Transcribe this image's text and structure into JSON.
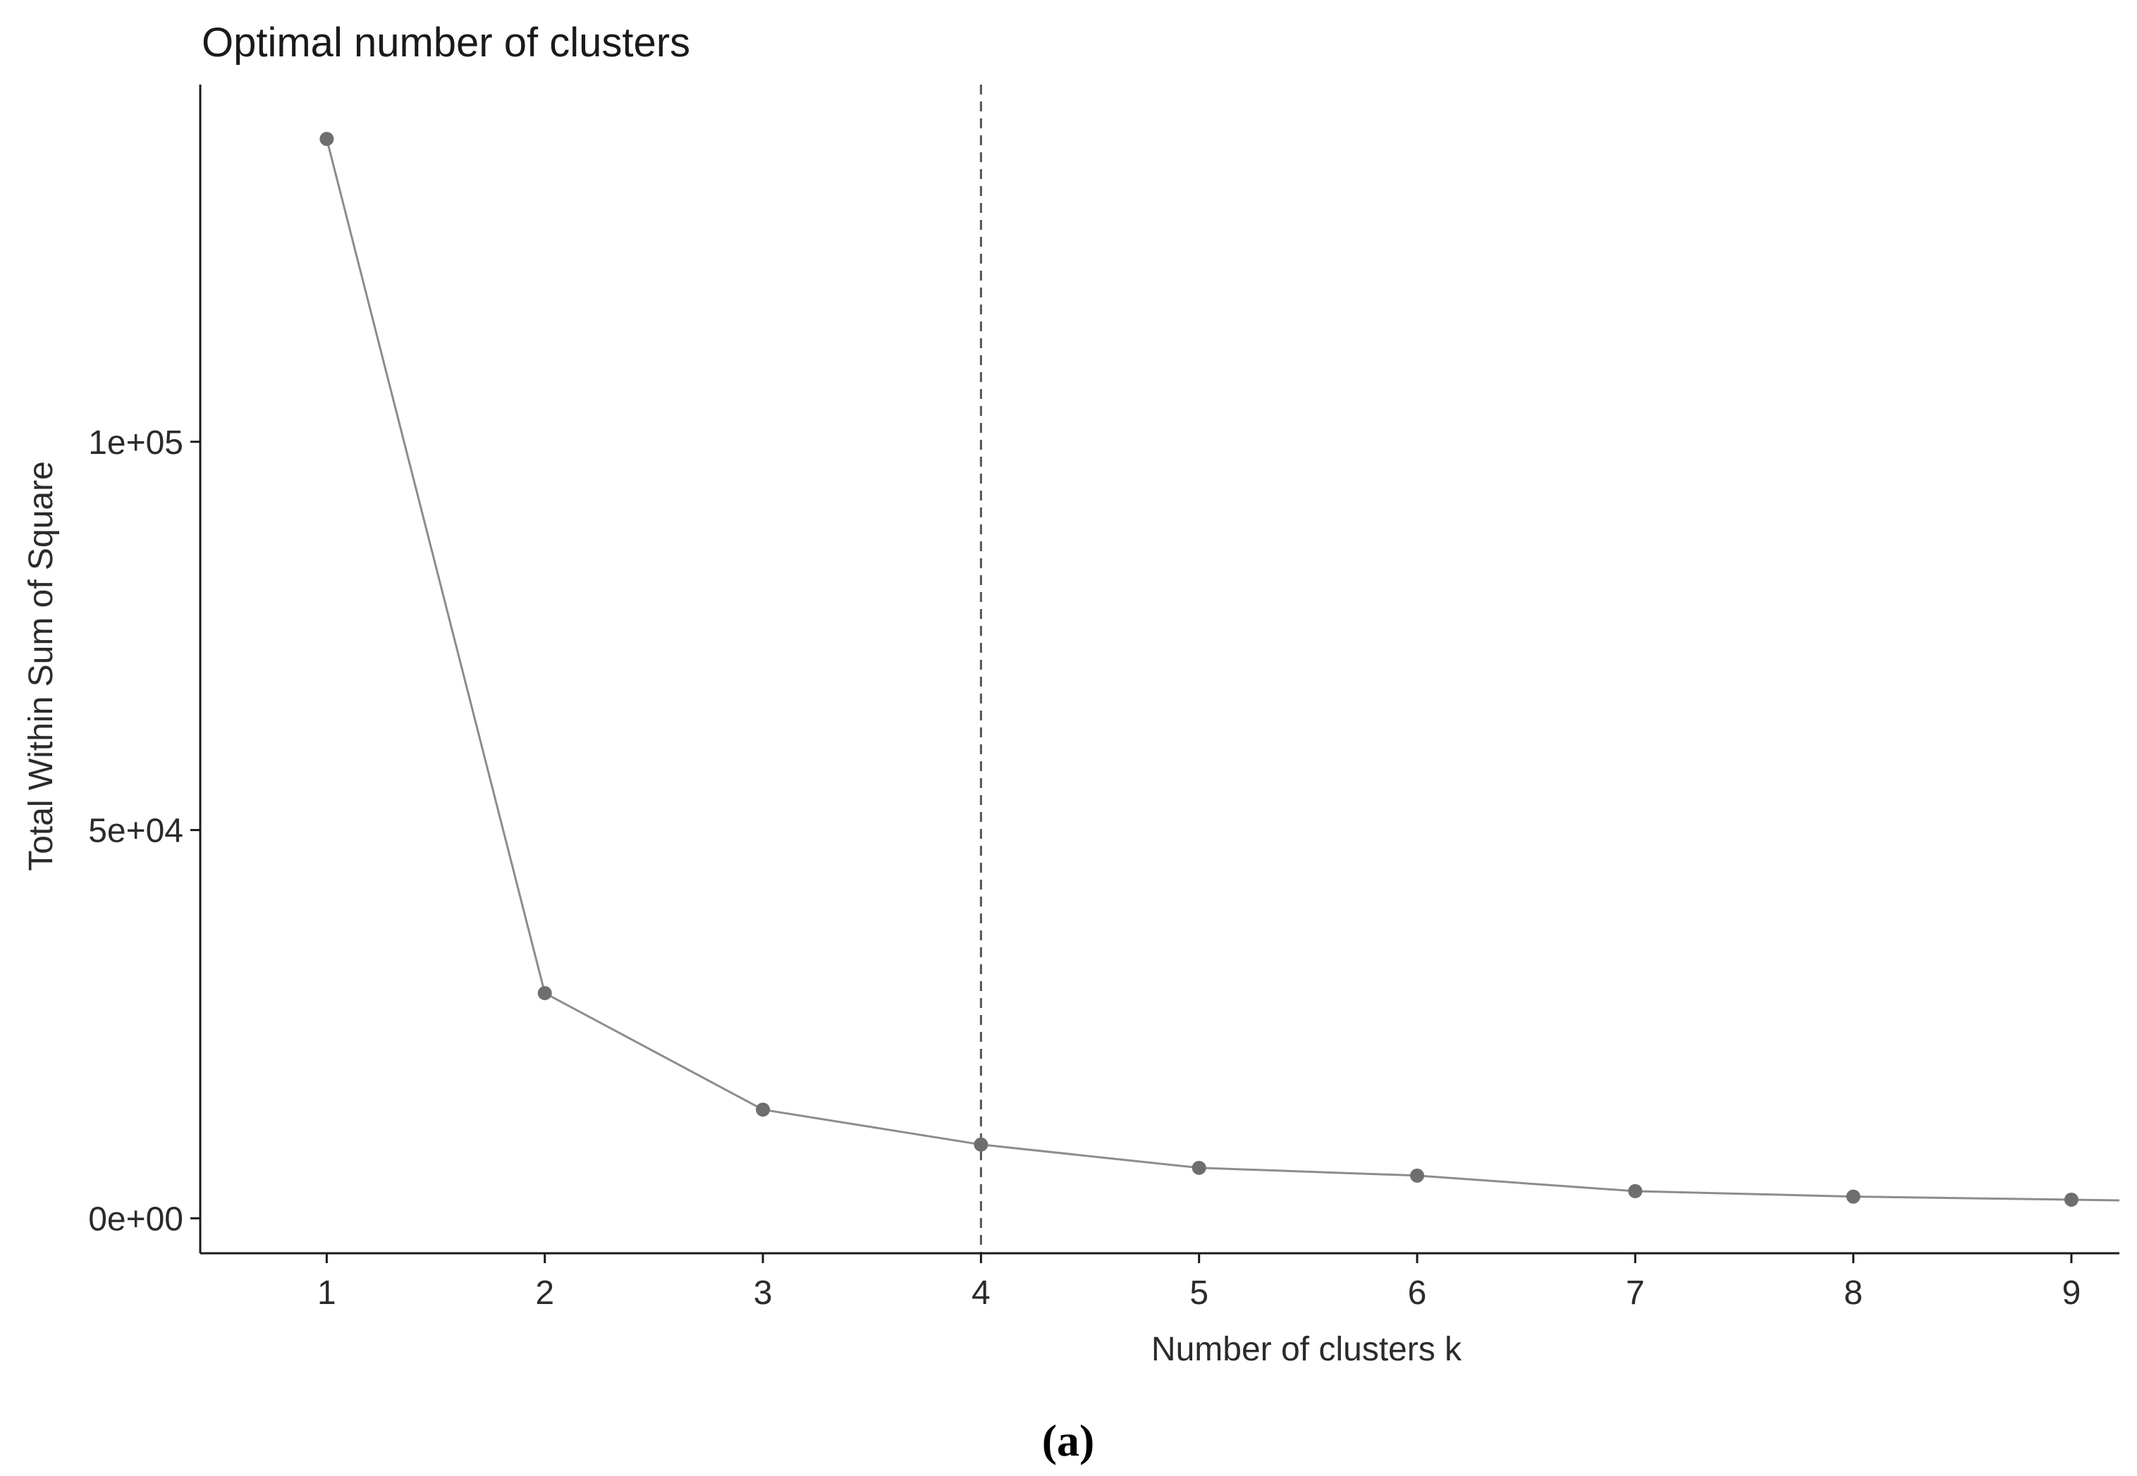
{
  "chart_data": {
    "type": "line",
    "title": "Optimal number of clusters",
    "xlabel": "Number of clusters k",
    "ylabel": "Total Within Sum of Square",
    "x_ticks": [
      "1",
      "2",
      "3",
      "4",
      "5",
      "6",
      "7",
      "8",
      "9"
    ],
    "y_ticks": [
      {
        "value": 0,
        "label": "0e+00"
      },
      {
        "value": 50000,
        "label": "5e+04"
      },
      {
        "value": 100000,
        "label": "1e+05"
      }
    ],
    "x": [
      1,
      2,
      3,
      4,
      5,
      6,
      7,
      8,
      9
    ],
    "values": [
      139000,
      29000,
      14000,
      9500,
      6500,
      5500,
      3500,
      2800,
      2400
    ],
    "xlim": [
      0.42,
      9.22
    ],
    "ylim": [
      -4500,
      146000
    ],
    "optimal_k": 4,
    "grid": false,
    "colors": {
      "line": "#8c8c8c",
      "point": "#6e6e6e",
      "vline": "#555555",
      "axis": "#1a1a1a"
    }
  },
  "caption": "(a)"
}
